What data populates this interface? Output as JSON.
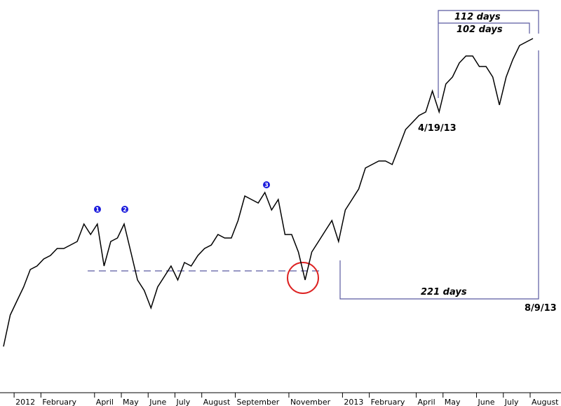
{
  "chart_data": {
    "type": "line",
    "color": "#000000",
    "ylim": [
      0,
      580
    ],
    "categories": [
      null,
      null,
      "2012",
      null,
      null,
      null,
      "February",
      null,
      null,
      null,
      null,
      null,
      null,
      null,
      "April",
      null,
      null,
      null,
      "May",
      null,
      null,
      null,
      "June",
      null,
      null,
      null,
      "July",
      null,
      null,
      null,
      "August",
      null,
      null,
      null,
      null,
      "September",
      null,
      null,
      null,
      null,
      null,
      null,
      null,
      "November",
      null,
      null,
      null,
      null,
      null,
      null,
      null,
      "2013",
      null,
      null,
      null,
      "February",
      null,
      null,
      null,
      null,
      null,
      null,
      "April",
      null,
      null,
      null,
      "May",
      null,
      null,
      null,
      null,
      "June",
      null,
      null,
      null,
      "July",
      null,
      null,
      null,
      "August"
    ],
    "values": [
      85,
      130,
      150,
      170,
      195,
      200,
      210,
      215,
      225,
      225,
      230,
      235,
      260,
      245,
      260,
      200,
      235,
      240,
      260,
      220,
      180,
      165,
      140,
      170,
      185,
      200,
      180,
      205,
      200,
      215,
      225,
      230,
      245,
      240,
      240,
      265,
      300,
      295,
      290,
      305,
      280,
      295,
      245,
      245,
      220,
      180,
      220,
      235,
      250,
      265,
      235,
      280,
      295,
      310,
      340,
      345,
      350,
      350,
      345,
      370,
      395,
      405,
      415,
      420,
      450,
      420,
      460,
      470,
      490,
      500,
      500,
      485,
      485,
      470,
      430,
      470,
      495,
      515,
      520,
      525
    ],
    "annotations": [
      "112 days",
      "102 days",
      "4/19/13",
      "221 days",
      "8/9/13",
      "1",
      "2",
      "3"
    ]
  }
}
